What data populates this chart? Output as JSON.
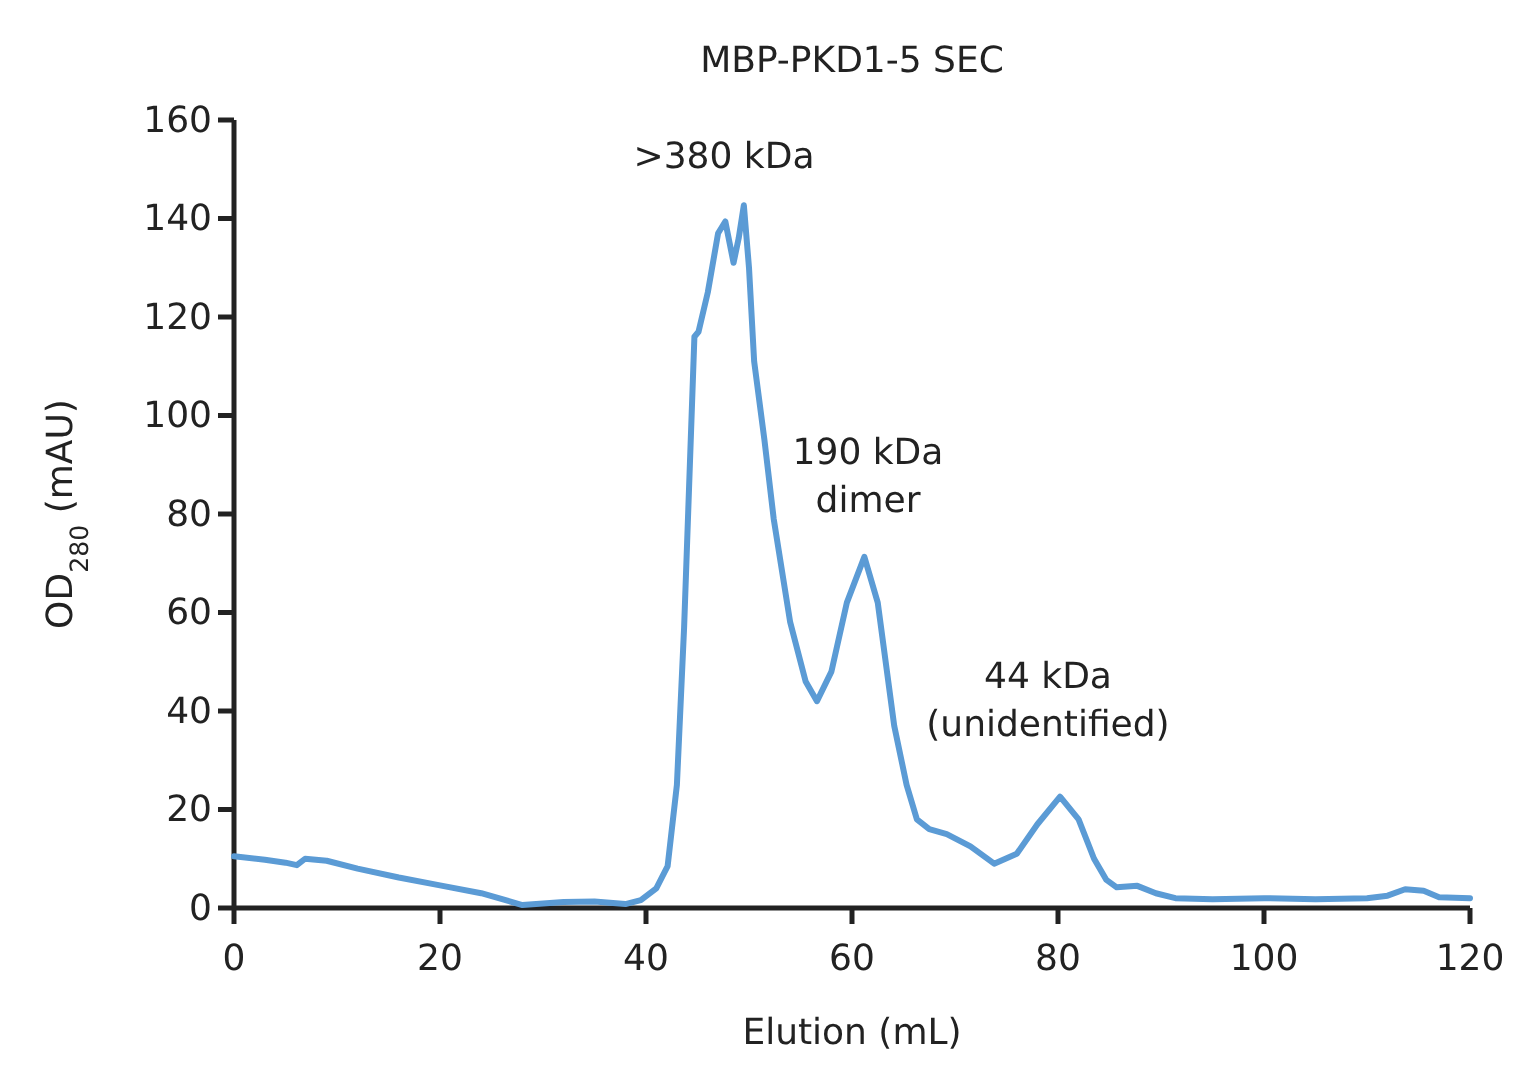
{
  "chart_data": {
    "type": "line",
    "title": "MBP-PKD1-5 SEC",
    "xlabel": "Elution (mL)",
    "ylabel": "OD$_{280}$ (mAU)",
    "x": [
      0,
      3,
      5,
      6.1,
      6.9,
      9,
      12,
      16,
      20,
      24,
      28,
      32,
      35,
      38,
      39.5,
      41,
      42.1,
      43,
      43.7,
      44.7,
      45.1,
      46,
      47,
      47.7,
      48.5,
      49,
      49.5,
      50,
      50.5,
      51.5,
      52.4,
      54,
      55.5,
      56.6,
      58,
      59.5,
      61.2,
      62.5,
      64.1,
      65.3,
      66.3,
      67.5,
      69.2,
      71.5,
      73.8,
      76,
      78,
      80.2,
      82,
      83.5,
      84.7,
      85.7,
      87.7,
      89.5,
      91.4,
      95,
      100,
      105,
      110,
      112,
      113.7,
      115.5,
      117,
      120
    ],
    "series": [
      {
        "color": "#5b9bd5",
        "values": [
          10.5,
          9.8,
          9.2,
          8.7,
          10,
          9.6,
          8,
          6.2,
          4.6,
          3,
          0.6,
          1.2,
          1.3,
          0.8,
          1.6,
          4,
          8.5,
          25,
          57,
          116,
          117,
          125,
          137,
          139.4,
          131,
          136,
          142.7,
          130,
          111,
          95,
          79,
          58,
          46,
          42,
          48,
          62,
          71.3,
          62,
          37,
          25,
          18,
          16,
          15,
          12.5,
          9,
          11,
          17,
          22.6,
          18,
          10,
          5.7,
          4.2,
          4.5,
          3,
          2,
          1.8,
          2,
          1.8,
          2,
          2.5,
          3.8,
          3.5,
          2.2,
          2
        ]
      }
    ],
    "xlim": [
      0,
      120
    ],
    "xticks": [
      0,
      20,
      40,
      60,
      80,
      100,
      120
    ],
    "ylim": [
      0,
      160
    ],
    "yticks": [
      0,
      20,
      40,
      60,
      80,
      100,
      120,
      140,
      160
    ],
    "annotations": [
      ">380 kDa",
      "190 kDa\ndimer",
      "44 kDa\n(unidentified)"
    ]
  }
}
